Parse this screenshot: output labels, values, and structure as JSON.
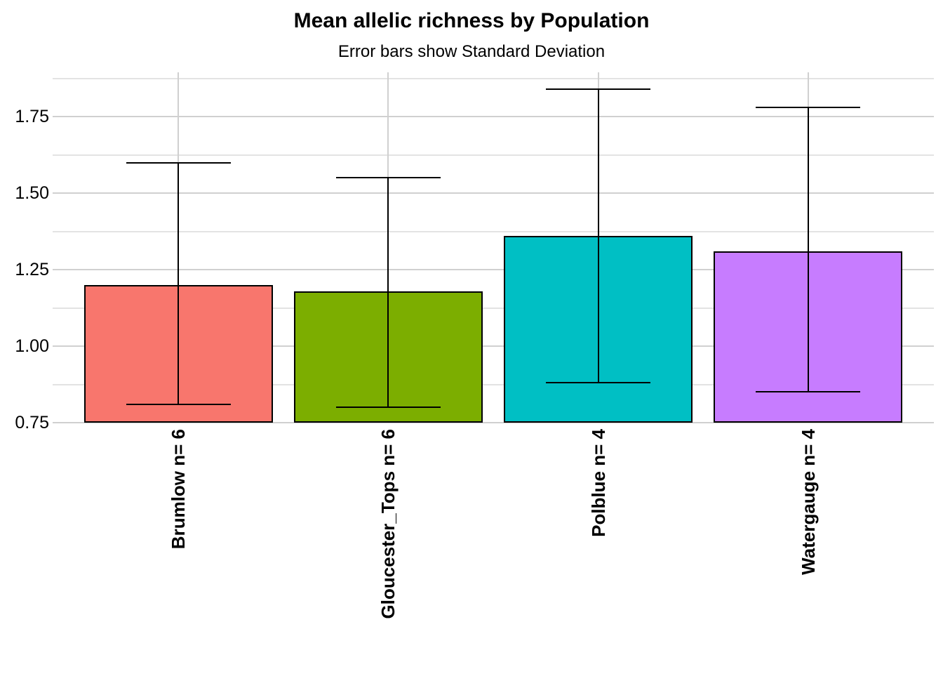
{
  "header": {
    "title": "Mean allelic richness by Population",
    "subtitle": "Error bars show Standard Deviation"
  },
  "chart_data": {
    "type": "bar",
    "title": "Mean allelic richness by Population",
    "subtitle": "Error bars show Standard Deviation",
    "categories": [
      "Brumlow n= 6",
      "Gloucester_Tops n= 6",
      "Polblue n= 4",
      "Watergauge n= 4"
    ],
    "series": [
      {
        "name": "Mean allelic richness",
        "values": [
          1.2,
          1.18,
          1.36,
          1.31
        ]
      }
    ],
    "error_bars": {
      "label": "Standard Deviation",
      "sd": [
        0.39,
        0.37,
        0.48,
        0.46
      ],
      "upper": [
        1.6,
        1.55,
        1.84,
        1.78
      ],
      "lower": [
        0.81,
        0.8,
        0.88,
        0.85
      ]
    },
    "bar_colors": [
      "#F8766D",
      "#7CAE00",
      "#00BFC4",
      "#C77CFF"
    ],
    "bar_border_color": "#000000",
    "error_bar_color": "#000000",
    "xlabel": "",
    "ylabel": "",
    "ylim": [
      0.75,
      1.895
    ],
    "y_ticks": [
      {
        "value": 0.75,
        "label": "0.75"
      },
      {
        "value": 1.0,
        "label": "1.00"
      },
      {
        "value": 1.25,
        "label": "1.25"
      },
      {
        "value": 1.5,
        "label": "1.50"
      },
      {
        "value": 1.75,
        "label": "1.75"
      }
    ],
    "y_minor_ticks": [
      0.875,
      1.125,
      1.375,
      1.625,
      1.875
    ],
    "grid": "horizontal major+minor and vertical major at category centers, light gray on white",
    "legend": "none"
  }
}
